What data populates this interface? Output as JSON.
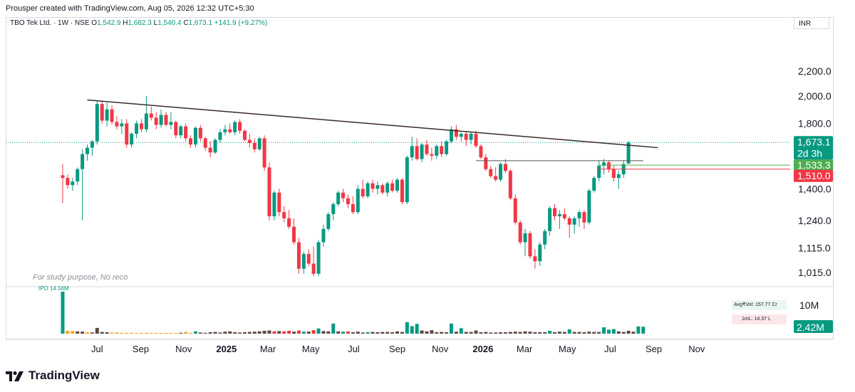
{
  "header": {
    "attribution": "Prousper created with TradingView.com, Aug 05, 2026 12:32 UTC+5:30"
  },
  "legend": {
    "symbol": "TBO Tek Ltd. · 1W · NSE",
    "o_label": "O",
    "o_value": "1,542.9",
    "h_label": "H",
    "h_value": "1,682.3",
    "l_label": "L",
    "l_value": "1,540.4",
    "c_label": "C",
    "c_value": "1,673.1",
    "change": "+141.9 (+9.27%)"
  },
  "currency": "INR",
  "annotation": "For study purpose, No reco",
  "volume_label": "IPO 14.56M",
  "avg_vol": "Avg₹Vol: 157.77 Cr",
  "ml": "1mL: 14.37 L",
  "footer": {
    "brand": "TradingView"
  },
  "price_tags": [
    {
      "text": "1,673.1",
      "color": "#089981"
    },
    {
      "text": "2d 3h",
      "color": "#089981"
    },
    {
      "text": "1,533.3",
      "color": "#4caf50"
    },
    {
      "text": "1,510.0",
      "color": "#f23645"
    }
  ],
  "volume_tags": [
    {
      "text": "10M",
      "color": "#131722"
    },
    {
      "text": "2.42M",
      "color": "#089981"
    }
  ],
  "colors": {
    "up": "#089981",
    "down": "#f23645",
    "trendline": "#3b2a2a",
    "vol_up": "#089981",
    "vol_down": "#f23645",
    "vol_neutral": "#5d4a45",
    "vol_low": "#f5a623"
  },
  "chart_data": {
    "type": "candlestick",
    "y_axis": {
      "scale": "log",
      "ticks": [
        "2,200.0",
        "2,000.0",
        "1,800.0",
        "1,400.0",
        "1,240.0",
        "1,115.0",
        "1,015.0"
      ],
      "tick_values": [
        2200,
        2000,
        1800,
        1400,
        1240,
        1115,
        1015
      ]
    },
    "x_axis": {
      "labels": [
        "Jul",
        "Sep",
        "Nov",
        "2025",
        "Mar",
        "May",
        "Jul",
        "Sep",
        "Nov",
        "2026",
        "Mar",
        "May",
        "Jul",
        "Sep",
        "Nov"
      ],
      "bold": [
        "2025",
        "2026"
      ],
      "start": "2024-05-13",
      "interval_weeks": 1
    },
    "candles_ohlc": [
      [
        1475,
        1540,
        1325,
        1460
      ],
      [
        1460,
        1480,
        1400,
        1420
      ],
      [
        1420,
        1460,
        1390,
        1440
      ],
      [
        1440,
        1520,
        1420,
        1510
      ],
      [
        1510,
        1630,
        1240,
        1600
      ],
      [
        1600,
        1660,
        1560,
        1640
      ],
      [
        1640,
        1690,
        1590,
        1680
      ],
      [
        1680,
        1960,
        1660,
        1940
      ],
      [
        1940,
        1960,
        1800,
        1820
      ],
      [
        1820,
        1950,
        1780,
        1900
      ],
      [
        1900,
        1930,
        1790,
        1810
      ],
      [
        1810,
        1850,
        1760,
        1780
      ],
      [
        1780,
        1830,
        1730,
        1800
      ],
      [
        1800,
        1830,
        1640,
        1660
      ],
      [
        1660,
        1740,
        1640,
        1730
      ],
      [
        1730,
        1820,
        1700,
        1800
      ],
      [
        1800,
        1830,
        1740,
        1760
      ],
      [
        1760,
        2000,
        1740,
        1870
      ],
      [
        1870,
        1920,
        1820,
        1840
      ],
      [
        1840,
        1880,
        1760,
        1790
      ],
      [
        1790,
        1900,
        1770,
        1860
      ],
      [
        1860,
        1880,
        1780,
        1790
      ],
      [
        1790,
        1880,
        1760,
        1810
      ],
      [
        1810,
        1820,
        1700,
        1720
      ],
      [
        1720,
        1790,
        1700,
        1780
      ],
      [
        1780,
        1800,
        1680,
        1700
      ],
      [
        1700,
        1720,
        1640,
        1660
      ],
      [
        1660,
        1780,
        1640,
        1770
      ],
      [
        1770,
        1790,
        1680,
        1700
      ],
      [
        1700,
        1710,
        1620,
        1640
      ],
      [
        1640,
        1680,
        1580,
        1610
      ],
      [
        1610,
        1700,
        1600,
        1690
      ],
      [
        1690,
        1760,
        1670,
        1740
      ],
      [
        1740,
        1790,
        1720,
        1760
      ],
      [
        1760,
        1800,
        1730,
        1740
      ],
      [
        1740,
        1820,
        1720,
        1810
      ],
      [
        1810,
        1830,
        1730,
        1750
      ],
      [
        1750,
        1760,
        1680,
        1690
      ],
      [
        1690,
        1730,
        1640,
        1670
      ],
      [
        1670,
        1700,
        1610,
        1630
      ],
      [
        1630,
        1710,
        1620,
        1700
      ],
      [
        1700,
        1720,
        1500,
        1520
      ],
      [
        1520,
        1550,
        1240,
        1260
      ],
      [
        1260,
        1390,
        1240,
        1380
      ],
      [
        1380,
        1400,
        1260,
        1280
      ],
      [
        1280,
        1310,
        1230,
        1250
      ],
      [
        1250,
        1290,
        1200,
        1210
      ],
      [
        1210,
        1250,
        1130,
        1140
      ],
      [
        1140,
        1160,
        1010,
        1030
      ],
      [
        1030,
        1100,
        1010,
        1090
      ],
      [
        1090,
        1110,
        1040,
        1050
      ],
      [
        1050,
        1120,
        1000,
        1010
      ],
      [
        1010,
        1150,
        1000,
        1140
      ],
      [
        1140,
        1220,
        1120,
        1200
      ],
      [
        1200,
        1280,
        1190,
        1270
      ],
      [
        1270,
        1330,
        1240,
        1320
      ],
      [
        1320,
        1390,
        1310,
        1380
      ],
      [
        1380,
        1400,
        1330,
        1350
      ],
      [
        1350,
        1370,
        1300,
        1320
      ],
      [
        1320,
        1360,
        1270,
        1280
      ],
      [
        1280,
        1420,
        1270,
        1400
      ],
      [
        1400,
        1450,
        1350,
        1360
      ],
      [
        1360,
        1440,
        1350,
        1430
      ],
      [
        1430,
        1450,
        1380,
        1400
      ],
      [
        1400,
        1440,
        1370,
        1420
      ],
      [
        1420,
        1430,
        1370,
        1380
      ],
      [
        1380,
        1440,
        1360,
        1430
      ],
      [
        1430,
        1450,
        1380,
        1390
      ],
      [
        1390,
        1460,
        1380,
        1450
      ],
      [
        1450,
        1460,
        1320,
        1330
      ],
      [
        1330,
        1590,
        1320,
        1580
      ],
      [
        1580,
        1710,
        1560,
        1650
      ],
      [
        1650,
        1700,
        1560,
        1570
      ],
      [
        1570,
        1670,
        1550,
        1660
      ],
      [
        1660,
        1690,
        1590,
        1600
      ],
      [
        1600,
        1640,
        1560,
        1590
      ],
      [
        1590,
        1660,
        1570,
        1650
      ],
      [
        1650,
        1680,
        1580,
        1600
      ],
      [
        1600,
        1690,
        1590,
        1680
      ],
      [
        1680,
        1780,
        1670,
        1760
      ],
      [
        1760,
        1790,
        1690,
        1710
      ],
      [
        1710,
        1740,
        1680,
        1730
      ],
      [
        1730,
        1750,
        1650,
        1690
      ],
      [
        1690,
        1740,
        1660,
        1730
      ],
      [
        1730,
        1750,
        1640,
        1650
      ],
      [
        1650,
        1660,
        1570,
        1580
      ],
      [
        1580,
        1600,
        1500,
        1510
      ],
      [
        1510,
        1530,
        1460,
        1470
      ],
      [
        1470,
        1520,
        1440,
        1450
      ],
      [
        1450,
        1550,
        1440,
        1540
      ],
      [
        1540,
        1570,
        1490,
        1500
      ],
      [
        1500,
        1510,
        1340,
        1350
      ],
      [
        1350,
        1370,
        1220,
        1230
      ],
      [
        1230,
        1240,
        1130,
        1140
      ],
      [
        1140,
        1200,
        1080,
        1180
      ],
      [
        1180,
        1190,
        1070,
        1080
      ],
      [
        1080,
        1110,
        1030,
        1060
      ],
      [
        1060,
        1140,
        1040,
        1130
      ],
      [
        1130,
        1200,
        1110,
        1190
      ],
      [
        1190,
        1310,
        1170,
        1300
      ],
      [
        1300,
        1320,
        1240,
        1260
      ],
      [
        1260,
        1290,
        1200,
        1270
      ],
      [
        1270,
        1300,
        1240,
        1250
      ],
      [
        1250,
        1260,
        1160,
        1220
      ],
      [
        1220,
        1260,
        1180,
        1250
      ],
      [
        1250,
        1290,
        1210,
        1280
      ],
      [
        1280,
        1290,
        1200,
        1230
      ],
      [
        1230,
        1400,
        1220,
        1390
      ],
      [
        1390,
        1470,
        1380,
        1460
      ],
      [
        1460,
        1560,
        1440,
        1530
      ],
      [
        1530,
        1570,
        1480,
        1550
      ],
      [
        1550,
        1560,
        1490,
        1510
      ],
      [
        1510,
        1530,
        1440,
        1460
      ],
      [
        1460,
        1500,
        1400,
        1480
      ],
      [
        1480,
        1560,
        1460,
        1540
      ],
      [
        1542.9,
        1682.3,
        1540.4,
        1673.1
      ]
    ],
    "volume_millions": [
      [
        14.56,
        "up"
      ],
      [
        1.0,
        "low"
      ],
      [
        0.9,
        "low"
      ],
      [
        0.8,
        "neutral"
      ],
      [
        0.7,
        "neutral"
      ],
      [
        0.5,
        "low"
      ],
      [
        0.4,
        "neutral"
      ],
      [
        2.0,
        "neutral"
      ],
      [
        0.6,
        "neutral"
      ],
      [
        0.5,
        "neutral"
      ],
      [
        0.4,
        "low"
      ],
      [
        0.4,
        "low"
      ],
      [
        0.3,
        "low"
      ],
      [
        0.3,
        "low"
      ],
      [
        0.3,
        "low"
      ],
      [
        0.2,
        "low"
      ],
      [
        0.2,
        "low"
      ],
      [
        0.3,
        "low"
      ],
      [
        0.2,
        "low"
      ],
      [
        0.2,
        "low"
      ],
      [
        0.2,
        "low"
      ],
      [
        0.2,
        "low"
      ],
      [
        0.2,
        "low"
      ],
      [
        0.2,
        "low"
      ],
      [
        0.3,
        "neutral"
      ],
      [
        0.6,
        "low"
      ],
      [
        0.3,
        "low"
      ],
      [
        0.8,
        "up"
      ],
      [
        0.4,
        "neutral"
      ],
      [
        0.3,
        "neutral"
      ],
      [
        0.5,
        "neutral"
      ],
      [
        0.6,
        "neutral"
      ],
      [
        0.4,
        "neutral"
      ],
      [
        0.7,
        "neutral"
      ],
      [
        0.8,
        "neutral"
      ],
      [
        0.5,
        "neutral"
      ],
      [
        0.4,
        "neutral"
      ],
      [
        0.5,
        "neutral"
      ],
      [
        0.6,
        "neutral"
      ],
      [
        0.7,
        "neutral"
      ],
      [
        0.8,
        "neutral"
      ],
      [
        1.0,
        "neutral"
      ],
      [
        1.1,
        "neutral"
      ],
      [
        0.8,
        "down"
      ],
      [
        0.9,
        "neutral"
      ],
      [
        0.8,
        "down"
      ],
      [
        1.0,
        "down"
      ],
      [
        0.7,
        "neutral"
      ],
      [
        1.1,
        "down"
      ],
      [
        0.7,
        "up"
      ],
      [
        0.7,
        "neutral"
      ],
      [
        1.2,
        "down"
      ],
      [
        1.8,
        "up"
      ],
      [
        0.9,
        "neutral"
      ],
      [
        0.8,
        "neutral"
      ],
      [
        3.5,
        "up"
      ],
      [
        0.8,
        "neutral"
      ],
      [
        0.7,
        "up"
      ],
      [
        0.8,
        "down"
      ],
      [
        0.5,
        "neutral"
      ],
      [
        0.7,
        "neutral"
      ],
      [
        0.4,
        "neutral"
      ],
      [
        0.5,
        "up"
      ],
      [
        0.6,
        "neutral"
      ],
      [
        0.5,
        "neutral"
      ],
      [
        0.6,
        "neutral"
      ],
      [
        0.6,
        "neutral"
      ],
      [
        0.5,
        "neutral"
      ],
      [
        0.8,
        "neutral"
      ],
      [
        0.6,
        "neutral"
      ],
      [
        4.0,
        "up"
      ],
      [
        2.6,
        "up"
      ],
      [
        3.4,
        "up"
      ],
      [
        1.1,
        "neutral"
      ],
      [
        0.8,
        "neutral"
      ],
      [
        1.2,
        "neutral"
      ],
      [
        0.5,
        "neutral"
      ],
      [
        0.6,
        "neutral"
      ],
      [
        0.5,
        "neutral"
      ],
      [
        3.5,
        "up"
      ],
      [
        0.7,
        "neutral"
      ],
      [
        1.9,
        "up"
      ],
      [
        0.6,
        "neutral"
      ],
      [
        0.6,
        "neutral"
      ],
      [
        1.1,
        "neutral"
      ],
      [
        0.5,
        "neutral"
      ],
      [
        0.6,
        "neutral"
      ],
      [
        0.4,
        "neutral"
      ],
      [
        0.4,
        "neutral"
      ],
      [
        0.5,
        "neutral"
      ],
      [
        0.5,
        "neutral"
      ],
      [
        0.6,
        "neutral"
      ],
      [
        0.7,
        "neutral"
      ],
      [
        0.6,
        "neutral"
      ],
      [
        0.8,
        "neutral"
      ],
      [
        0.7,
        "neutral"
      ],
      [
        0.5,
        "neutral"
      ],
      [
        0.5,
        "neutral"
      ],
      [
        0.5,
        "neutral"
      ],
      [
        1.0,
        "up"
      ],
      [
        0.5,
        "neutral"
      ],
      [
        0.7,
        "neutral"
      ],
      [
        0.6,
        "neutral"
      ],
      [
        1.5,
        "up"
      ],
      [
        0.6,
        "neutral"
      ],
      [
        0.6,
        "neutral"
      ],
      [
        0.5,
        "neutral"
      ],
      [
        0.7,
        "neutral"
      ],
      [
        0.6,
        "neutral"
      ],
      [
        0.6,
        "neutral"
      ],
      [
        2.2,
        "up"
      ],
      [
        1.4,
        "up"
      ],
      [
        1.6,
        "up"
      ],
      [
        0.8,
        "neutral"
      ],
      [
        0.6,
        "neutral"
      ],
      [
        1.0,
        "neutral"
      ],
      [
        0.7,
        "neutral"
      ],
      [
        2.5,
        "up"
      ],
      [
        2.42,
        "up"
      ]
    ],
    "trendline": [
      [
        1970,
        "2024-06-17"
      ],
      [
        1640,
        "2026-09-07"
      ]
    ],
    "hline": {
      "value": 1560,
      "from": "2025-12-22",
      "to": "2026-08-17"
    }
  }
}
